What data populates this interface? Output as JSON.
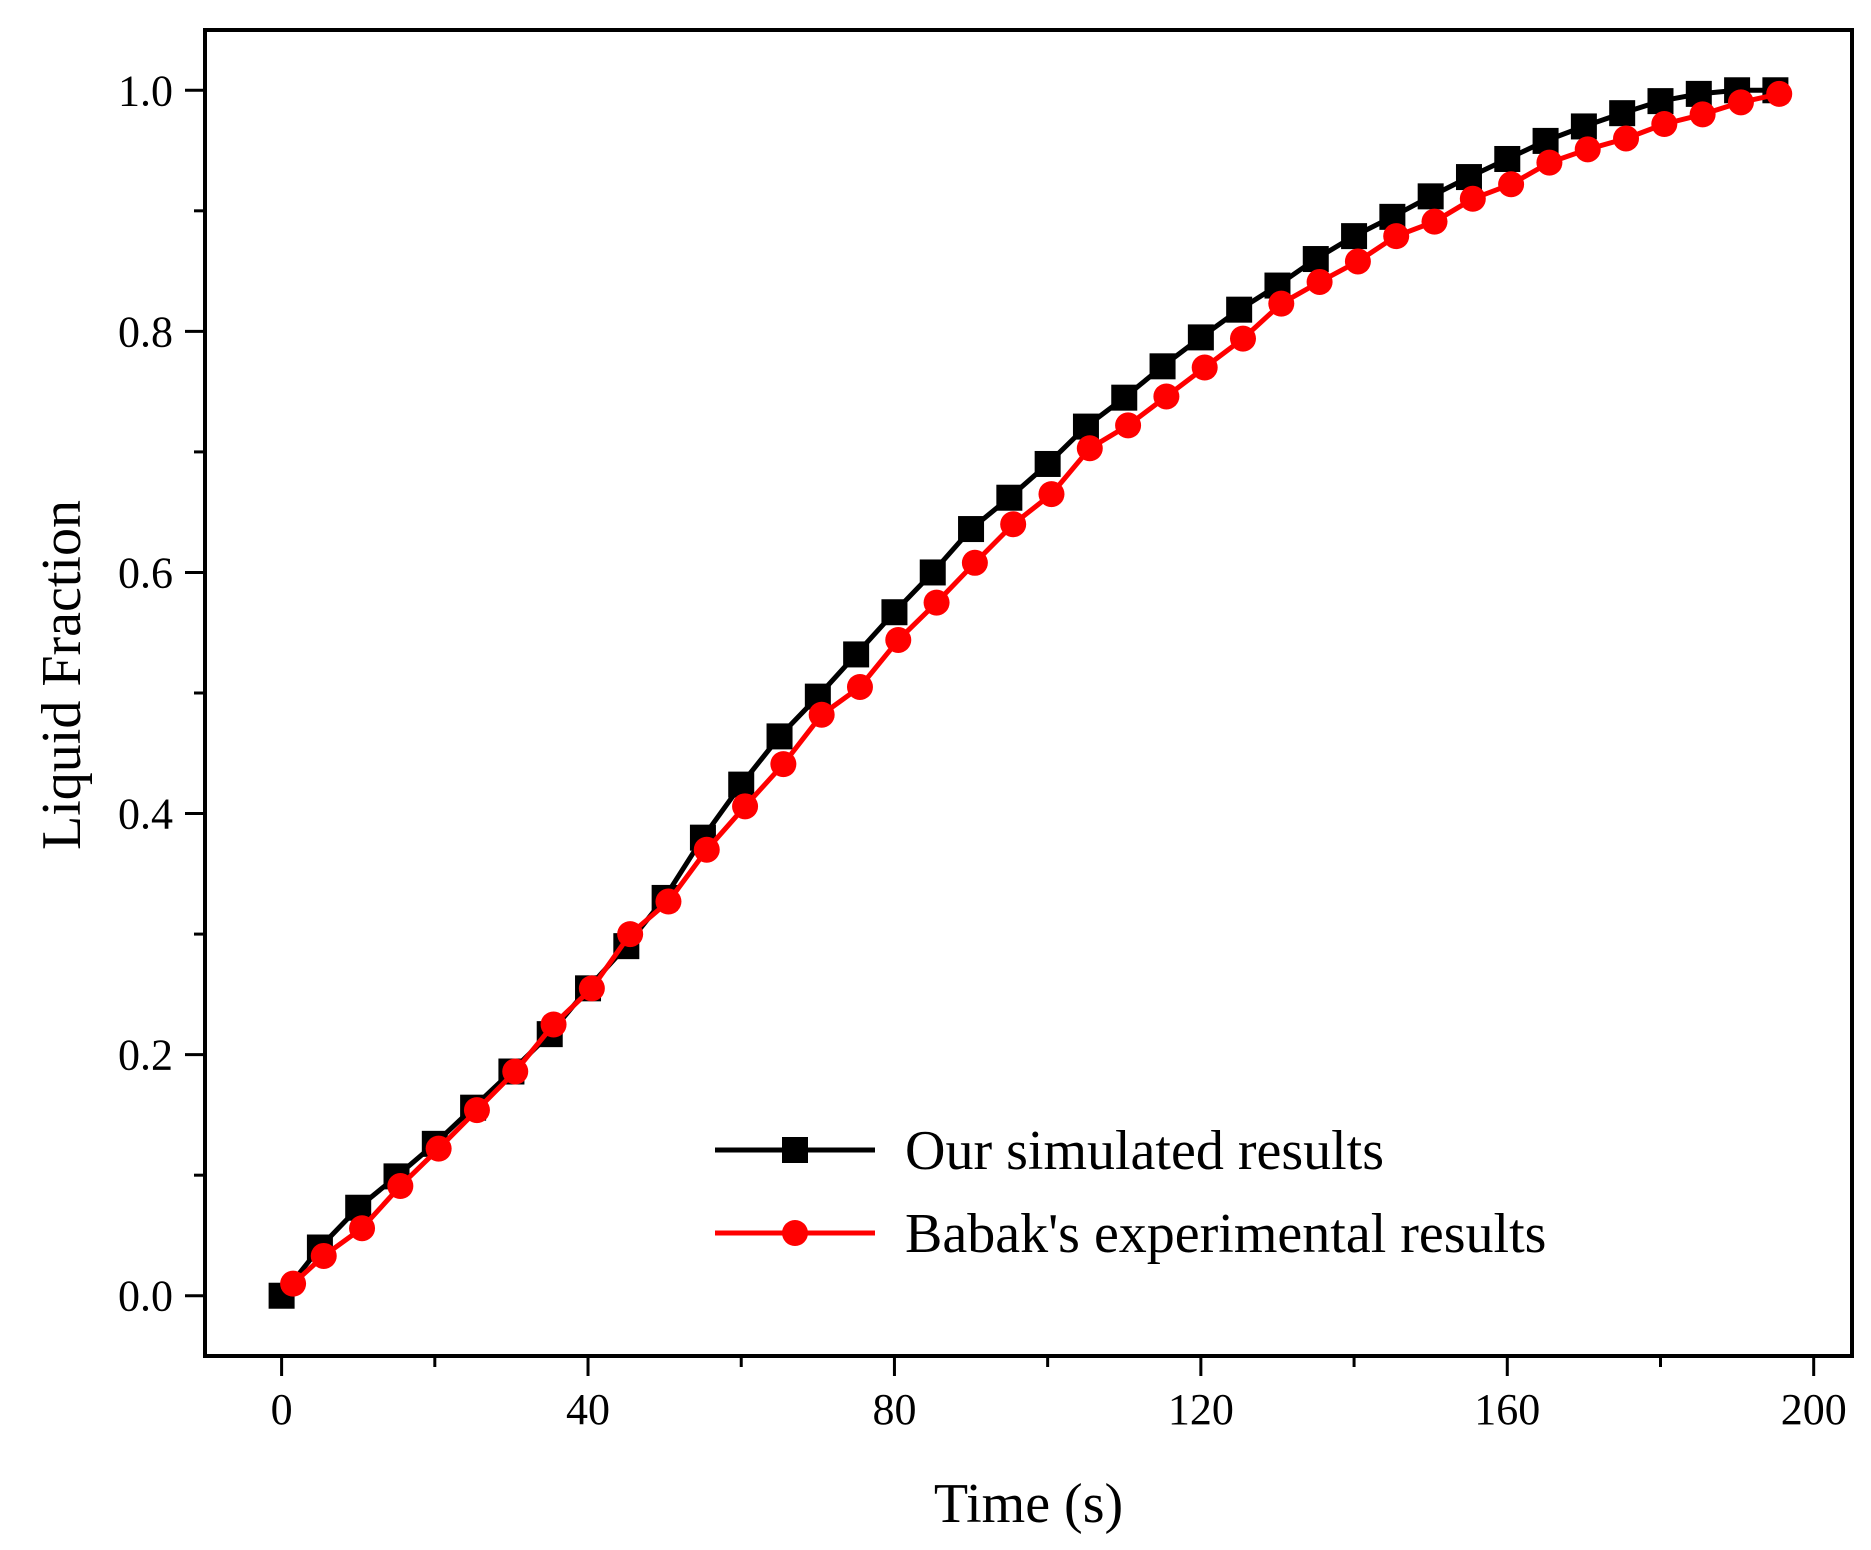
{
  "chart_data": {
    "type": "line",
    "title": "",
    "xlabel": "Time (s)",
    "ylabel": "Liquid Fraction",
    "xlim": [
      -10,
      205
    ],
    "ylim": [
      -0.05,
      1.05
    ],
    "xticks": [
      0,
      40,
      80,
      120,
      160,
      200
    ],
    "xtick_labels": [
      "0",
      "40",
      "80",
      "120",
      "160",
      "200"
    ],
    "yticks": [
      0.0,
      0.2,
      0.4,
      0.6,
      0.8,
      1.0
    ],
    "ytick_labels": [
      "0.0",
      "0.2",
      "0.4",
      "0.6",
      "0.8",
      "1.0"
    ],
    "grid": false,
    "legend_position": "bottom-right",
    "series": [
      {
        "name": "Our simulated results",
        "color": "#000000",
        "marker": "square",
        "x": [
          0,
          5,
          10,
          15,
          20,
          25,
          30,
          35,
          40,
          45,
          50,
          55,
          60,
          65,
          70,
          75,
          80,
          85,
          90,
          95,
          100,
          105,
          110,
          115,
          120,
          125,
          130,
          135,
          140,
          145,
          150,
          155,
          160,
          165,
          170,
          175,
          180,
          185,
          190,
          195
        ],
        "y": [
          0.0,
          0.04,
          0.073,
          0.099,
          0.126,
          0.156,
          0.186,
          0.217,
          0.255,
          0.29,
          0.33,
          0.38,
          0.424,
          0.464,
          0.497,
          0.532,
          0.567,
          0.6,
          0.636,
          0.662,
          0.69,
          0.721,
          0.745,
          0.771,
          0.795,
          0.818,
          0.838,
          0.86,
          0.879,
          0.895,
          0.912,
          0.928,
          0.943,
          0.958,
          0.97,
          0.981,
          0.991,
          0.997,
          1.0,
          1.0
        ]
      },
      {
        "name": "Babak's experimental results",
        "color": "#ff0000",
        "marker": "circle",
        "x": [
          1.5,
          5.5,
          10.5,
          15.5,
          20.5,
          25.5,
          30.5,
          35.5,
          40.5,
          45.5,
          50.5,
          55.5,
          60.5,
          65.5,
          70.5,
          75.5,
          80.5,
          85.5,
          90.5,
          95.5,
          100.5,
          105.5,
          110.5,
          115.5,
          120.5,
          125.5,
          130.5,
          135.5,
          140.5,
          145.5,
          150.5,
          155.5,
          160.5,
          165.5,
          170.5,
          175.5,
          180.5,
          185.5,
          190.5,
          195.5
        ],
        "y": [
          0.01,
          0.033,
          0.056,
          0.091,
          0.122,
          0.154,
          0.186,
          0.225,
          0.255,
          0.3,
          0.327,
          0.37,
          0.406,
          0.441,
          0.482,
          0.505,
          0.544,
          0.575,
          0.608,
          0.64,
          0.665,
          0.703,
          0.722,
          0.746,
          0.77,
          0.794,
          0.823,
          0.841,
          0.858,
          0.879,
          0.891,
          0.91,
          0.922,
          0.94,
          0.951,
          0.96,
          0.972,
          0.98,
          0.99,
          0.997
        ]
      }
    ]
  }
}
